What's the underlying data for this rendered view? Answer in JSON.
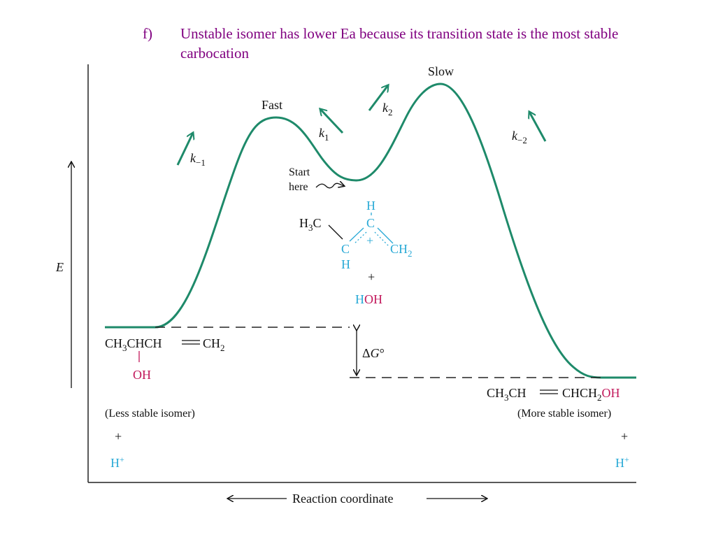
{
  "slide": {
    "marker": "f)",
    "text": "Unstable isomer has lower Ea because its transition state is the most stable carbocation"
  },
  "diagram": {
    "colors": {
      "curve": "#1e8a6a",
      "cyan": "#29a9d6",
      "magenta": "#c2185b",
      "text": "#111111"
    },
    "y_axis_label": "E",
    "x_axis_label": "Reaction coordinate",
    "peak_left_label": "Fast",
    "peak_right_label": "Slow",
    "k_minus1": {
      "k": "k",
      "sub": "−1"
    },
    "k1": {
      "k": "k",
      "sub": "1"
    },
    "k2": {
      "k": "k",
      "sub": "2"
    },
    "k_minus2": {
      "k": "k",
      "sub": "−2"
    },
    "start_label_1": "Start",
    "start_label_2": "here",
    "delta_g": {
      "delta": "Δ",
      "g": "G",
      "deg": "°"
    },
    "carbocation": {
      "h3c": "H",
      "h3c_sub": "3",
      "h3c_c": "C",
      "top_h": "H",
      "top_c": "C",
      "plus": "+",
      "ch2": "CH",
      "ch2_sub": "2",
      "left_c": "C",
      "left_h": "H"
    },
    "water": {
      "plus": "+",
      "h": "H",
      "oh": "OH"
    },
    "left_isomer": {
      "formula_a": "CH",
      "formula_sub": "3",
      "formula_b": "CHCH",
      "double_bond": "═",
      "formula_c": "CH",
      "formula_sub2": "2",
      "oh": "OH",
      "caption": "(Less stable isomer)",
      "plus": "+",
      "h": "H",
      "h_charge": "+"
    },
    "right_isomer": {
      "formula_a": "CH",
      "formula_sub": "3",
      "formula_b": "CH",
      "double_bond": "═",
      "formula_c": "CHCH",
      "formula_sub2": "2",
      "formula_oh": "OH",
      "caption": "(More stable isomer)",
      "plus": "+",
      "h": "H",
      "h_charge": "+"
    }
  }
}
